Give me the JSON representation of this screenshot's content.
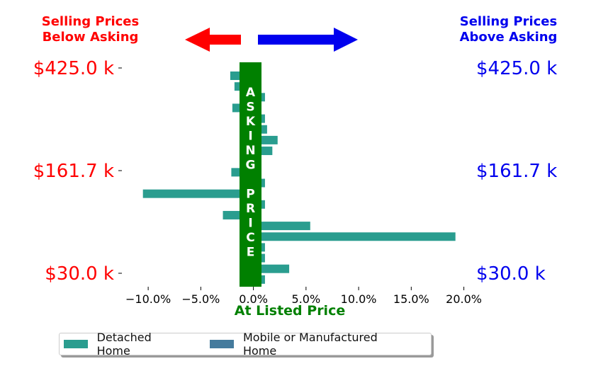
{
  "headers": {
    "left": "Selling Prices\nBelow Asking",
    "right": "Selling Prices\nAbove Asking"
  },
  "colors": {
    "left": "#ff0000",
    "right": "#0000ee",
    "asking": "#008000",
    "detached": "#2a9d8f",
    "mobile": "#457b9d"
  },
  "asking_price_label": "ASKING PRICE",
  "xlabel": "At Listed Price",
  "legend": [
    {
      "label": "Detached Home",
      "color": "#2a9d8f"
    },
    {
      "label": "Mobile or Manufactured Home",
      "color": "#457b9d"
    }
  ],
  "chart_data": {
    "type": "bar",
    "orientation": "horizontal",
    "x_ticks": [
      "−10.0%",
      "−5.0%",
      "0.0%",
      "5.0%",
      "10.0%",
      "15.0%",
      "20.0%"
    ],
    "xlim": [
      -12.5,
      20.5
    ],
    "y_ticks_left": [
      "$425.0 k",
      "$161.7 k",
      "$30.0 k"
    ],
    "y_ticks_right": [
      "$425.0 k",
      "$161.7 k",
      "$30.0 k"
    ],
    "series": [
      {
        "name": "Detached Home",
        "values": [
          -2.2,
          -1.8,
          1.1,
          -2.0,
          1.1,
          1.3,
          2.3,
          1.8,
          -1.0,
          -2.1,
          1.1,
          -10.5,
          1.1,
          -2.9,
          5.4,
          19.2,
          1.1,
          1.1,
          3.4,
          1.1
        ]
      },
      {
        "name": "Mobile or Manufactured Home",
        "values": []
      }
    ]
  }
}
